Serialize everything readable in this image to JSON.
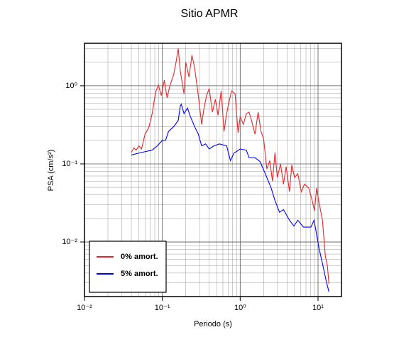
{
  "chart_data": {
    "type": "line",
    "title": "Sitio APMR",
    "x_label": "Periodo (s)",
    "y_label": "PSA (cm/s²)",
    "xscale": "log",
    "yscale": "log",
    "xlim": [
      0.01,
      20
    ],
    "ylim": [
      0.002,
      3.5
    ],
    "xticks": [
      {
        "value": 0.01,
        "label": "10⁻²"
      },
      {
        "value": 0.1,
        "label": "10⁻¹"
      },
      {
        "value": 1,
        "label": "10⁰"
      },
      {
        "value": 10,
        "label": "10¹"
      }
    ],
    "yticks": [
      {
        "value": 0.01,
        "label": "10⁻²"
      },
      {
        "value": 0.1,
        "label": "10⁻¹"
      },
      {
        "value": 1,
        "label": "10⁰"
      }
    ],
    "xminorticks": [
      0.02,
      0.03,
      0.04,
      0.05,
      0.06,
      0.07,
      0.08,
      0.09,
      0.2,
      0.3,
      0.4,
      0.5,
      0.6,
      0.7,
      0.8,
      0.9,
      2,
      3,
      4,
      5,
      6,
      7,
      8,
      9
    ],
    "yminorticks": [
      0.003,
      0.004,
      0.005,
      0.006,
      0.007,
      0.008,
      0.009,
      0.02,
      0.03,
      0.04,
      0.05,
      0.06,
      0.07,
      0.08,
      0.09,
      0.2,
      0.3,
      0.4,
      0.5,
      0.6,
      0.7,
      0.8,
      0.9,
      2,
      3
    ],
    "grid": true,
    "legend": "lower left",
    "series": [
      {
        "name": "0% amort.",
        "color": "#e8262a",
        "x": [
          0.04,
          0.043,
          0.046,
          0.05,
          0.054,
          0.06,
          0.067,
          0.074,
          0.082,
          0.089,
          0.097,
          0.106,
          0.115,
          0.125,
          0.14,
          0.15,
          0.16,
          0.17,
          0.19,
          0.2,
          0.22,
          0.24,
          0.26,
          0.29,
          0.32,
          0.34,
          0.37,
          0.4,
          0.44,
          0.48,
          0.52,
          0.57,
          0.62,
          0.67,
          0.73,
          0.78,
          0.86,
          0.94,
          1.0,
          1.1,
          1.2,
          1.3,
          1.4,
          1.55,
          1.7,
          1.85,
          2.0,
          2.2,
          2.4,
          2.6,
          2.8,
          3.0,
          3.3,
          3.6,
          3.9,
          4.3,
          4.6,
          5.0,
          5.5,
          6.1,
          6.7,
          7.6,
          8.3,
          9.0,
          9.6,
          10.3,
          11.4,
          12.4,
          13.2,
          13.8
        ],
        "values": [
          0.14,
          0.16,
          0.15,
          0.17,
          0.155,
          0.24,
          0.29,
          0.44,
          0.83,
          1.02,
          0.75,
          1.18,
          0.7,
          1.0,
          1.4,
          2.0,
          3.0,
          1.55,
          0.79,
          2.0,
          1.3,
          2.45,
          1.7,
          0.75,
          0.32,
          0.49,
          0.75,
          0.92,
          0.46,
          0.67,
          0.42,
          0.86,
          0.26,
          0.44,
          0.67,
          0.86,
          0.79,
          0.25,
          0.4,
          0.32,
          0.44,
          0.46,
          0.36,
          0.24,
          0.46,
          0.26,
          0.21,
          0.086,
          0.11,
          0.06,
          0.14,
          0.067,
          0.1,
          0.055,
          0.092,
          0.044,
          0.097,
          0.067,
          0.075,
          0.044,
          0.055,
          0.049,
          0.036,
          0.025,
          0.049,
          0.032,
          0.019,
          0.0067,
          0.0049,
          0.0029
        ]
      },
      {
        "name": "5% amort.",
        "color": "#0000ff",
        "x": [
          0.04,
          0.054,
          0.074,
          0.086,
          0.1,
          0.11,
          0.12,
          0.14,
          0.16,
          0.17,
          0.175,
          0.19,
          0.21,
          0.23,
          0.26,
          0.29,
          0.32,
          0.36,
          0.4,
          0.46,
          0.54,
          0.67,
          0.75,
          0.83,
          1.0,
          1.2,
          1.3,
          1.55,
          1.8,
          2.1,
          2.5,
          2.8,
          3.2,
          3.6,
          4.3,
          4.9,
          5.5,
          6.5,
          8.1,
          8.9,
          10.3,
          11.6,
          12.7,
          13.8
        ],
        "values": [
          0.13,
          0.14,
          0.15,
          0.17,
          0.2,
          0.2,
          0.26,
          0.3,
          0.36,
          0.55,
          0.58,
          0.44,
          0.52,
          0.4,
          0.3,
          0.24,
          0.17,
          0.18,
          0.155,
          0.17,
          0.18,
          0.17,
          0.11,
          0.137,
          0.155,
          0.15,
          0.12,
          0.12,
          0.107,
          0.075,
          0.049,
          0.034,
          0.024,
          0.026,
          0.019,
          0.016,
          0.019,
          0.0155,
          0.0155,
          0.019,
          0.0083,
          0.0049,
          0.0032,
          0.0023
        ]
      }
    ]
  }
}
